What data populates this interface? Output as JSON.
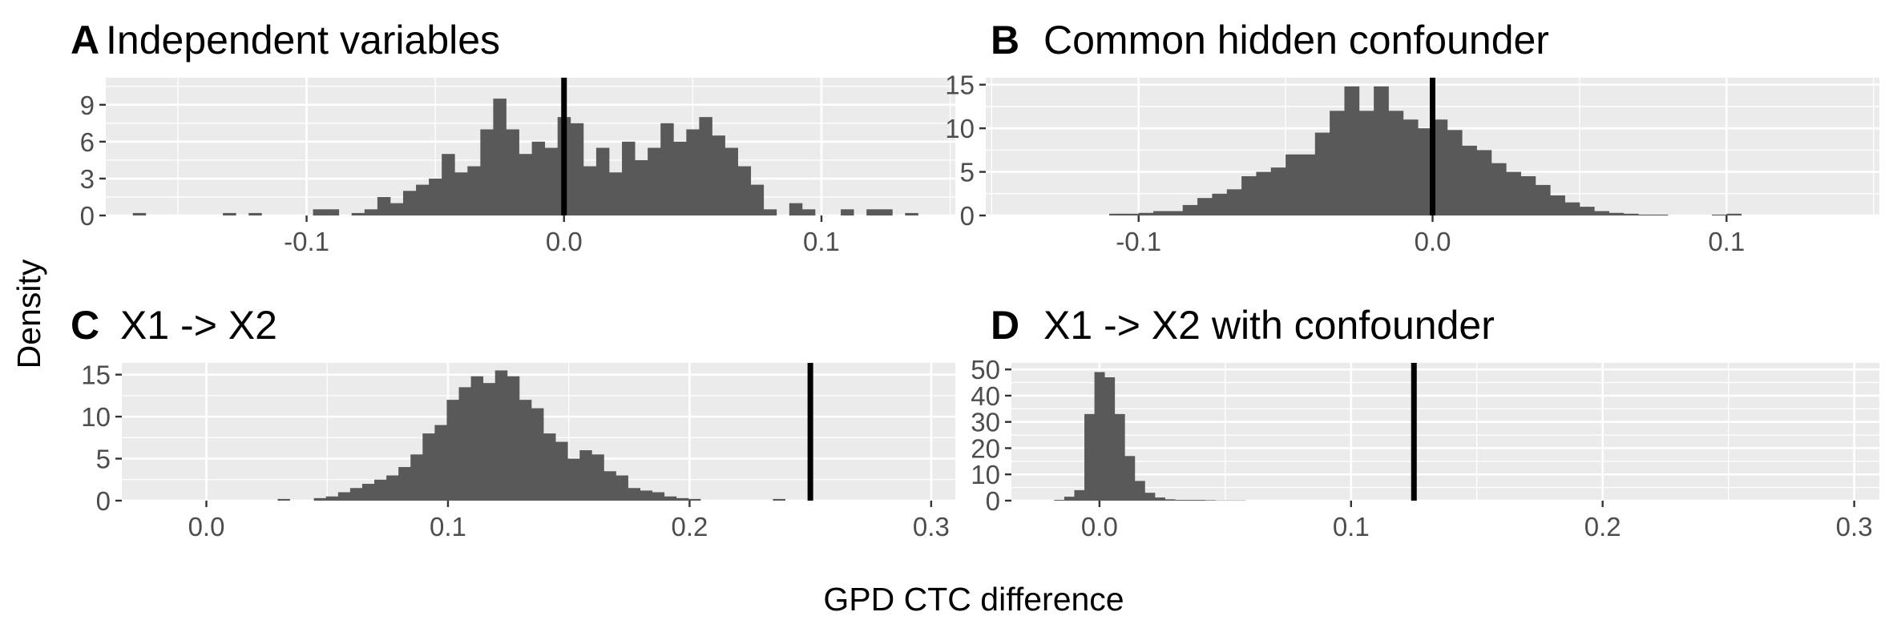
{
  "figure": {
    "xlabel": "GPD CTC difference",
    "ylabel": "Density"
  },
  "chart_data": [
    {
      "type": "bar",
      "tag": "A",
      "title": "Independent variables",
      "xlim": [
        -0.178,
        0.152
      ],
      "ylim": [
        0,
        11.2
      ],
      "xticks": [
        -0.1,
        0.0,
        0.1
      ],
      "xtick_labels": [
        "-0.1",
        "0.0",
        "0.1"
      ],
      "yticks": [
        0,
        3,
        6,
        9
      ],
      "ytick_labels": [
        "0",
        "3",
        "6",
        "9"
      ],
      "bin_start": -0.1725,
      "bin_width": 0.005,
      "values": [
        0,
        0.2,
        0,
        0,
        0,
        0,
        0,
        0,
        0.2,
        0,
        0.2,
        0,
        0,
        0,
        0,
        0.5,
        0.5,
        0,
        0.2,
        0.5,
        1.5,
        1,
        2,
        2.5,
        3,
        5,
        3.5,
        4,
        7,
        9.5,
        7,
        5,
        6,
        5.5,
        8,
        7.5,
        4,
        5.5,
        3.5,
        6,
        4.5,
        5.5,
        7.5,
        6,
        7,
        8,
        6.5,
        5.5,
        4,
        2.5,
        0.5,
        0,
        1,
        0.5,
        0,
        0,
        0.5,
        0,
        0.5,
        0.5,
        0,
        0.2,
        0,
        0,
        0
      ],
      "reference_line": 0.0
    },
    {
      "type": "bar",
      "tag": "B",
      "title": "Common hidden confounder",
      "xlim": [
        -0.152,
        0.152
      ],
      "ylim": [
        0,
        15.8
      ],
      "xticks": [
        -0.1,
        0.0,
        0.1
      ],
      "xtick_labels": [
        "-0.1",
        "0.0",
        "0.1"
      ],
      "yticks": [
        0,
        5,
        10,
        15
      ],
      "ytick_labels": [
        "0",
        "5",
        "10",
        "15"
      ],
      "bin_start": -0.11,
      "bin_width": 0.005,
      "values": [
        0.2,
        0.2,
        0.3,
        0.5,
        0.5,
        1.2,
        2,
        2.5,
        3,
        4.5,
        5,
        5.5,
        7,
        7,
        9.5,
        12,
        14.8,
        12,
        14.8,
        12,
        11,
        10,
        11,
        9.8,
        8,
        7.5,
        6,
        5,
        4.5,
        3.5,
        2.3,
        1.5,
        1,
        0.5,
        0.3,
        0.2,
        0.1,
        0.1,
        0,
        0,
        0,
        0.1,
        0.2,
        0
      ],
      "reference_line": 0.0
    },
    {
      "type": "bar",
      "tag": "C",
      "title": "X1 -> X2",
      "xlim": [
        -0.035,
        0.31
      ],
      "ylim": [
        0,
        16.4
      ],
      "xticks": [
        0.0,
        0.1,
        0.2,
        0.3
      ],
      "xtick_labels": [
        "0.0",
        "0.1",
        "0.2",
        "0.3"
      ],
      "yticks": [
        0,
        5,
        10,
        15
      ],
      "ytick_labels": [
        "0",
        "5",
        "10",
        "15"
      ],
      "bin_start": 0.0295,
      "bin_width": 0.005,
      "values": [
        0.2,
        0,
        0,
        0.3,
        0.5,
        1,
        1.5,
        2,
        2.5,
        3,
        4,
        5.5,
        8,
        9,
        12,
        13.5,
        14.8,
        14,
        15.5,
        14.8,
        12,
        11,
        8,
        7,
        5,
        6,
        5.5,
        3.5,
        3,
        1.5,
        1.2,
        1,
        0.5,
        0.3,
        0.2,
        0,
        0,
        0,
        0,
        0,
        0,
        0.2
      ],
      "reference_line": 0.25
    },
    {
      "type": "bar",
      "tag": "D",
      "title": "X1 -> X2 with confounder",
      "xlim": [
        -0.035,
        0.31
      ],
      "ylim": [
        0,
        52.5
      ],
      "xticks": [
        0.0,
        0.1,
        0.2,
        0.3
      ],
      "xtick_labels": [
        "0.0",
        "0.1",
        "0.2",
        "0.3"
      ],
      "yticks": [
        0,
        10,
        20,
        30,
        40,
        50
      ],
      "ytick_labels": [
        "0",
        "10",
        "20",
        "30",
        "40",
        "50"
      ],
      "bin_start": -0.018,
      "bin_width": 0.004,
      "values": [
        0.3,
        1.5,
        4,
        33,
        49,
        47,
        33,
        17,
        7.5,
        3,
        1.2,
        0.5,
        0.3,
        0.3,
        0.3,
        0.2,
        0.1,
        0.1,
        0.1
      ],
      "reference_line": 0.125
    }
  ]
}
